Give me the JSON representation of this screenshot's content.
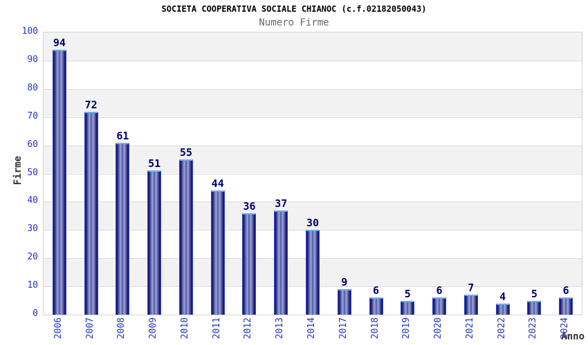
{
  "chart_data": {
    "type": "bar",
    "title": "SOCIETA COOPERATIVA SOCIALE CHIANOC (c.f.02182050043)",
    "subtitle": "Numero Firme",
    "xlabel": "Anno",
    "ylabel": "Firme",
    "categories": [
      "2006",
      "2007",
      "2008",
      "2009",
      "2010",
      "2011",
      "2012",
      "2013",
      "2014",
      "2017",
      "2018",
      "2019",
      "2020",
      "2021",
      "2022",
      "2023",
      "2024"
    ],
    "values": [
      94,
      72,
      61,
      51,
      55,
      44,
      36,
      37,
      30,
      9,
      6,
      5,
      6,
      7,
      4,
      5,
      6
    ],
    "ylim": [
      0,
      100
    ],
    "ytick_step": 10,
    "grid": "horizontal-bands",
    "legend": "none",
    "colors": {
      "bar_edge": "#1b1b74",
      "bar_light": "#9fa8d8",
      "bar_mid": "#4d58a8",
      "bar_cap": "#74abe8",
      "bar_outline": "#2b46c8",
      "tick_label": "#2233cc",
      "value_label": "#00006a",
      "band_gray": "#f2f2f2",
      "plot_border": "#d3d3d3",
      "gridline": "#dcdcdc"
    }
  }
}
